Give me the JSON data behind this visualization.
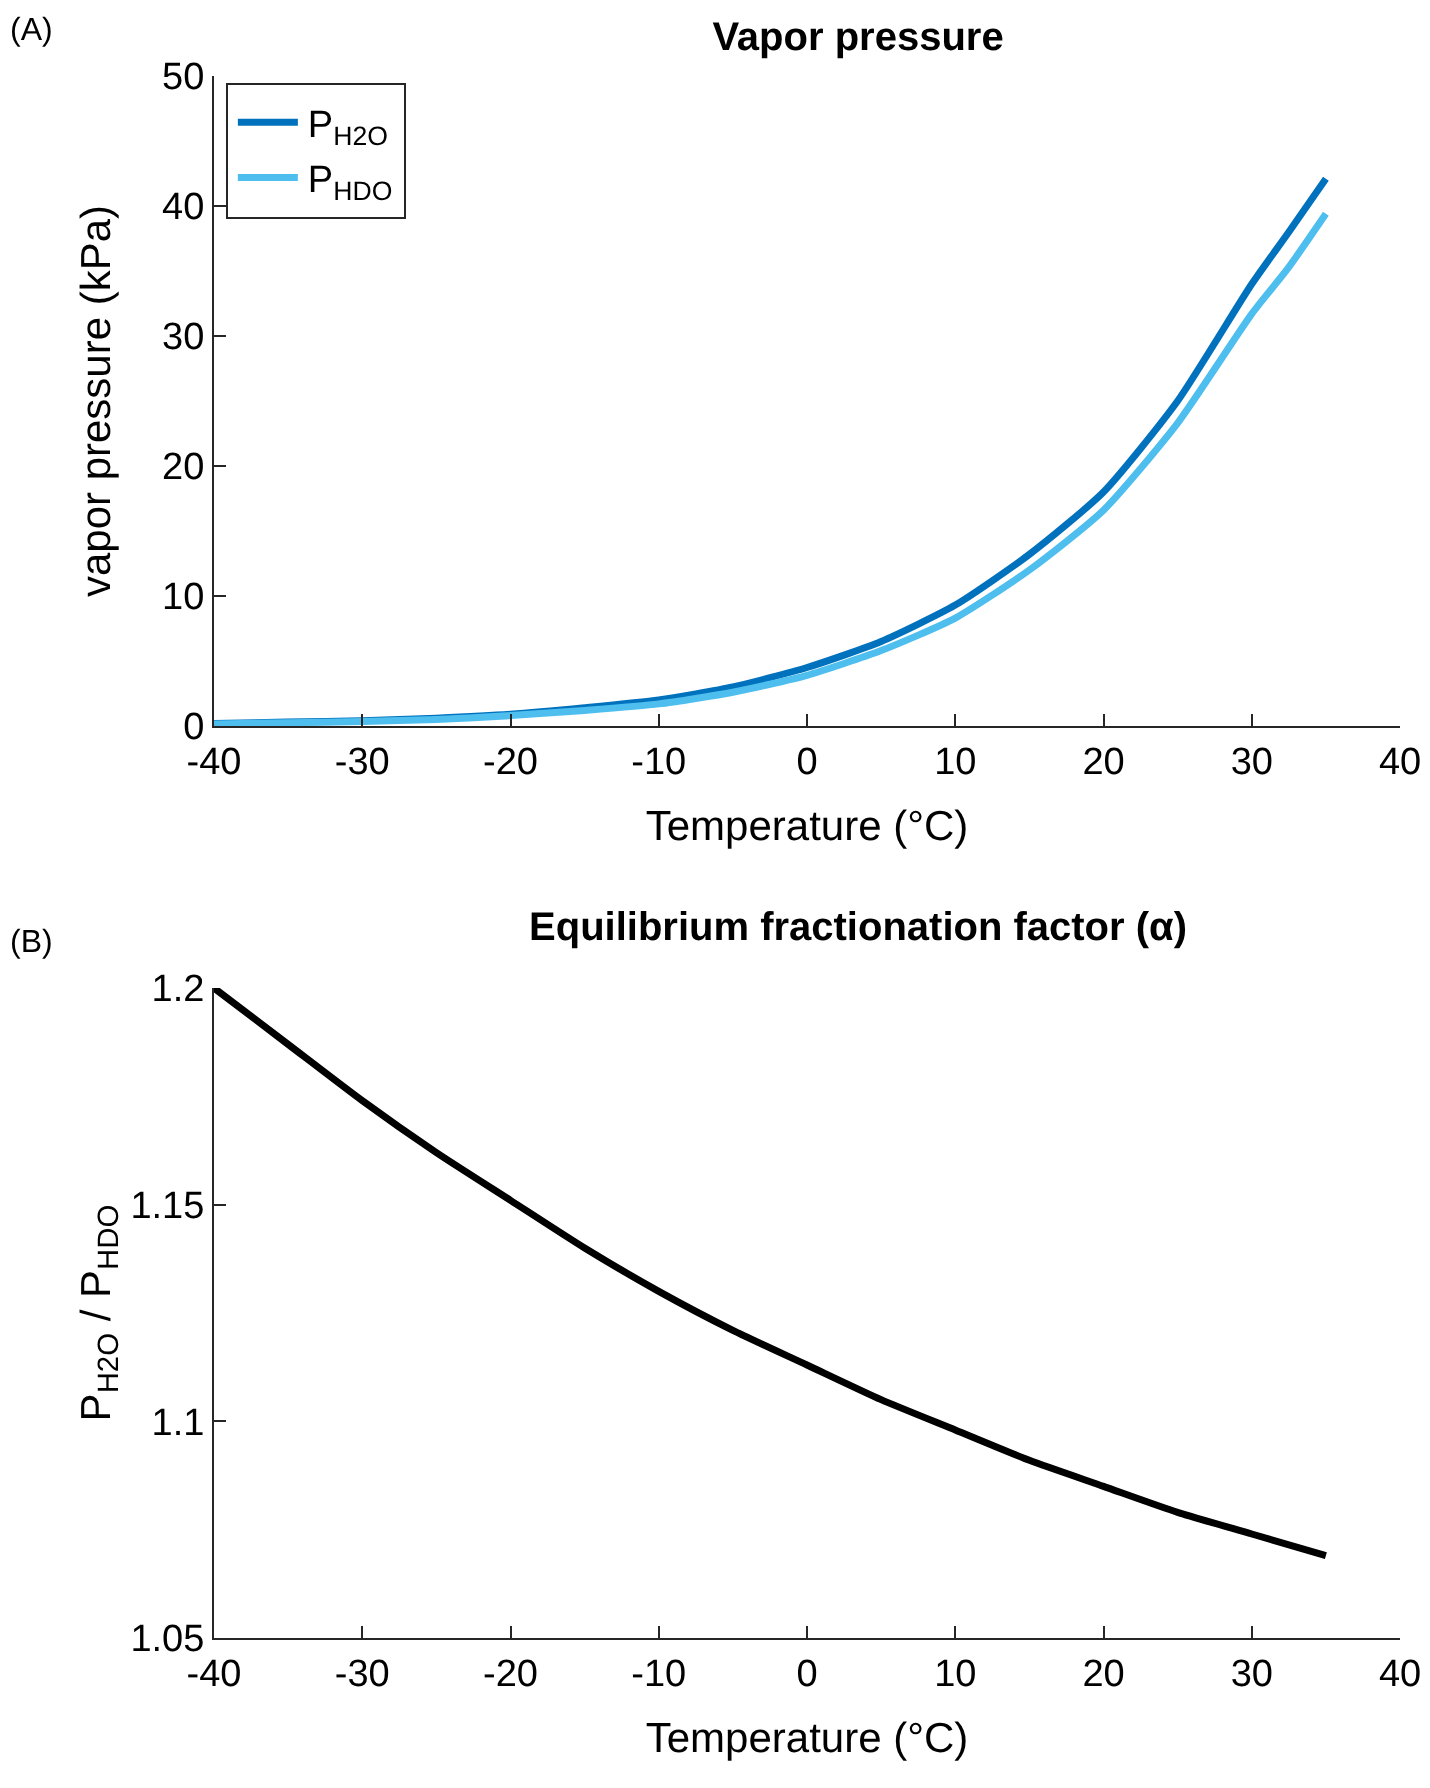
{
  "chart_data": [
    {
      "type": "line",
      "title": "Vapor pressure",
      "xlabel": "Temperature (°C)",
      "ylabel": "vapor pressure (kPa)",
      "annotations": [
        "(A)"
      ],
      "x": [
        -40,
        -35,
        -30,
        -25,
        -20,
        -15,
        -10,
        -5,
        0,
        5,
        10,
        15,
        20,
        25,
        30,
        32.5,
        35
      ],
      "series": [
        {
          "name": "P$_{H2O}$",
          "color": "#0072bd",
          "values": [
            0.2,
            0.3,
            0.4,
            0.6,
            0.9,
            1.4,
            2.0,
            3.0,
            4.5,
            6.5,
            9.3,
            13.2,
            18.0,
            25.0,
            34.0,
            38.0,
            42.1
          ]
        },
        {
          "name": "P$_{HDO}$",
          "color": "#4dbeee",
          "values": [
            0.15,
            0.25,
            0.35,
            0.5,
            0.8,
            1.2,
            1.7,
            2.6,
            3.9,
            5.8,
            8.3,
            12.0,
            16.6,
            23.3,
            31.7,
            35.3,
            39.4
          ]
        }
      ],
      "xlim": [
        -40,
        40
      ],
      "xticks": [
        -40,
        -30,
        -20,
        -10,
        0,
        10,
        20,
        30,
        40
      ],
      "ylim": [
        0,
        50
      ],
      "yticks": [
        0,
        10,
        20,
        30,
        40,
        50
      ],
      "grid": false,
      "legend": "top left",
      "line_style": "solid",
      "marker": "none"
    },
    {
      "type": "line",
      "title": "Equilibrium fractionation factor (α)",
      "xlabel": "Temperature (°C)",
      "ylabel": "P$_{H2O}$ / P$_{HDO}$",
      "annotations": [
        "(B)"
      ],
      "x": [
        -40,
        -35,
        -30,
        -25,
        -20,
        -15,
        -10,
        -5,
        0,
        5,
        10,
        15,
        20,
        25,
        30,
        35
      ],
      "series": [
        {
          "color": "#000000",
          "values": [
            1.2,
            1.187,
            1.174,
            1.162,
            1.151,
            1.14,
            1.13,
            1.121,
            1.113,
            1.105,
            1.098,
            1.091,
            1.085,
            1.079,
            1.074,
            1.069
          ]
        }
      ],
      "xlim": [
        -40,
        40
      ],
      "xticks": [
        -40,
        -30,
        -20,
        -10,
        0,
        10,
        20,
        30,
        40
      ],
      "ylim": [
        1.05,
        1.2
      ],
      "yticks": [
        1.05,
        1.1,
        1.15,
        1.2
      ],
      "grid": false,
      "legend": false,
      "line_style": "solid",
      "marker": "none"
    }
  ]
}
